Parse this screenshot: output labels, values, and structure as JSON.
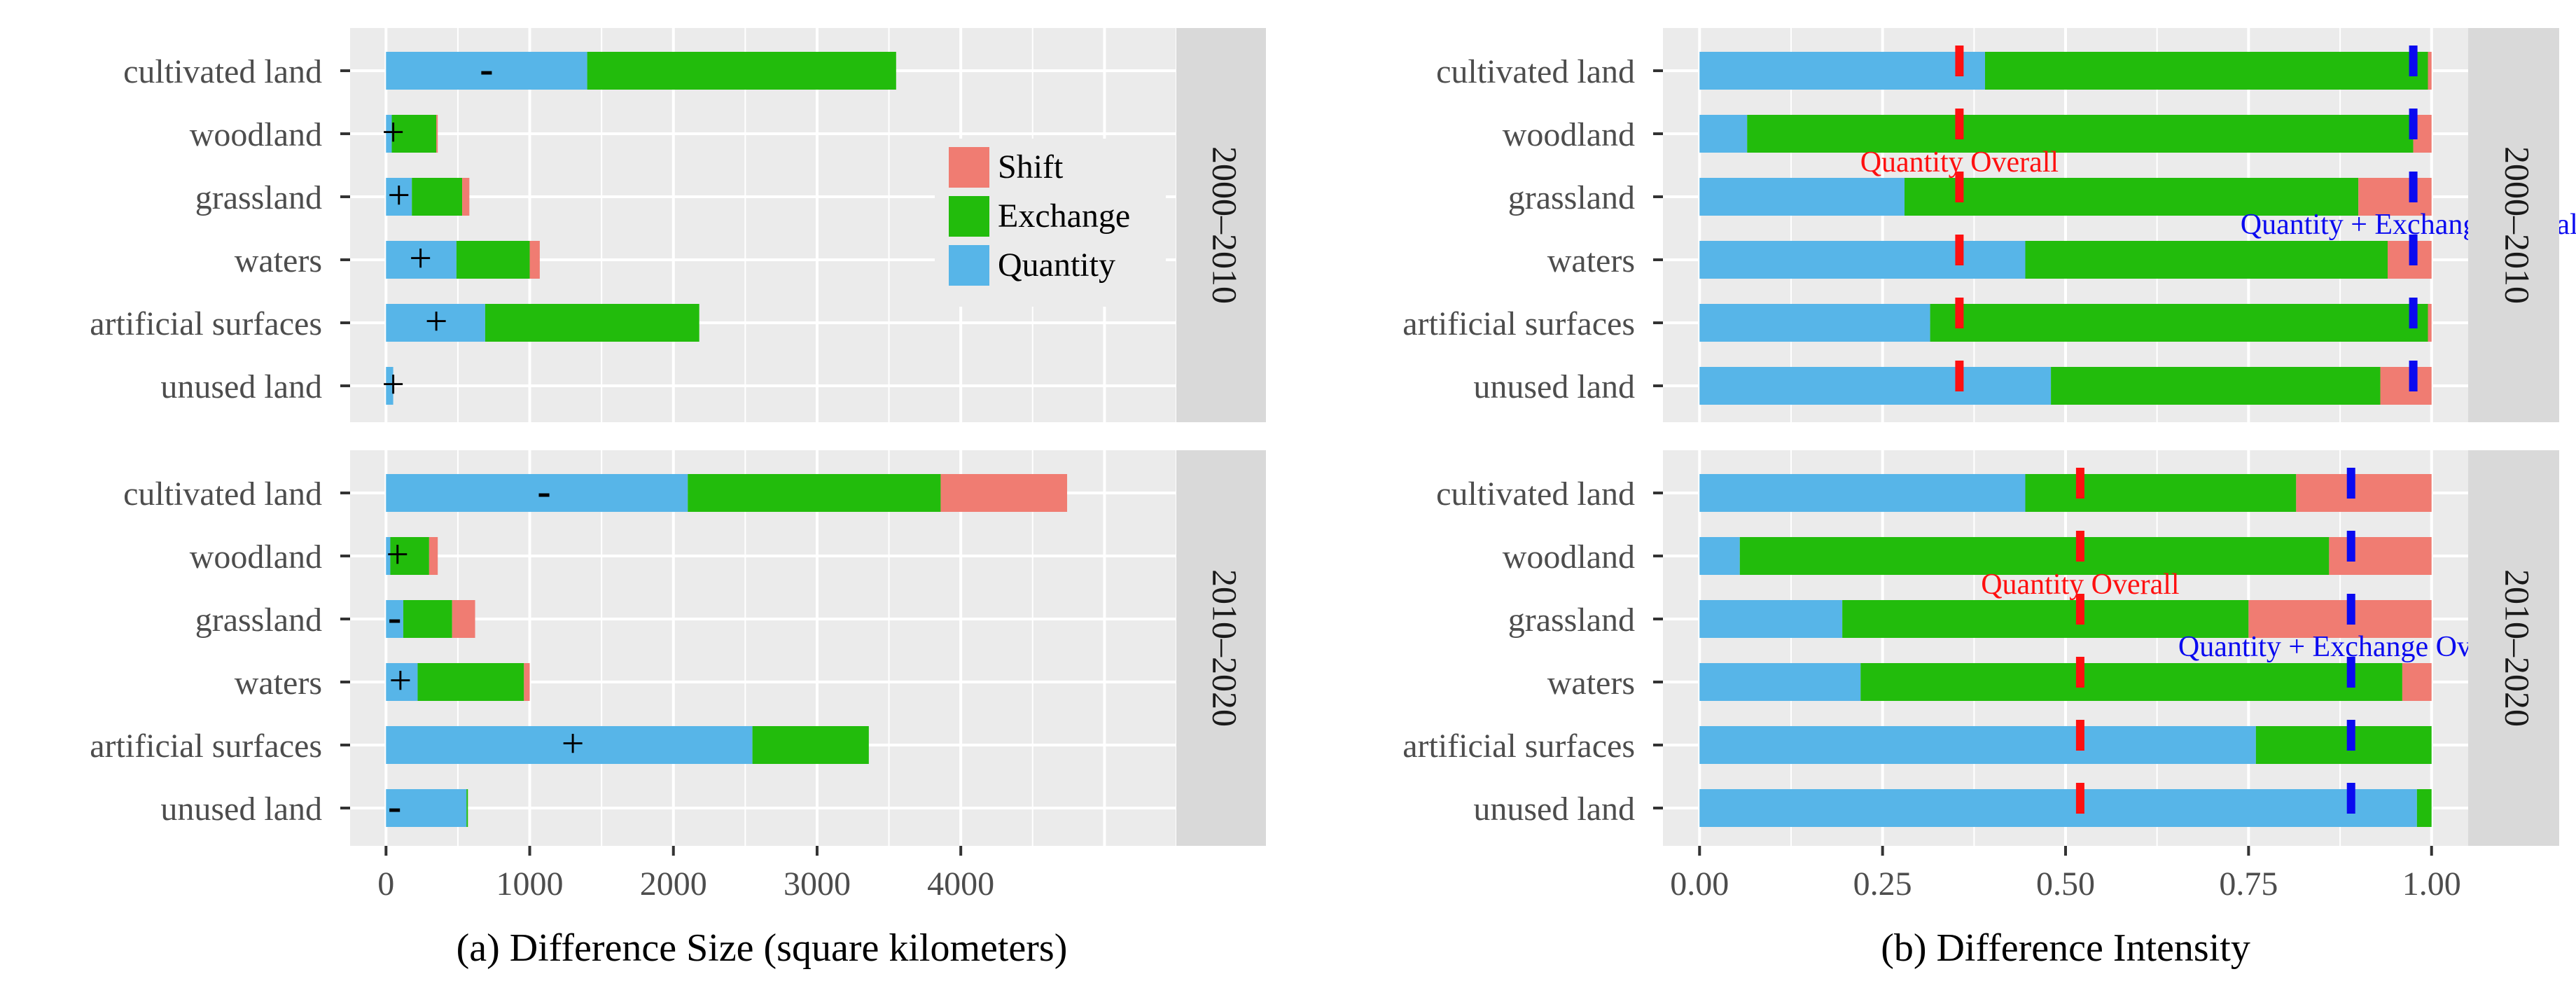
{
  "colors": {
    "shift": "#F07C72",
    "exchange": "#22BC0C",
    "quantity": "#57B5E8",
    "panel_bg": "#EBEBEB",
    "strip_bg": "#D9D9D9",
    "grid": "#FFFFFF",
    "quantity_overall_line": "#FF1010",
    "qe_overall_line": "#0A0AF0",
    "text": "#4D4D4D"
  },
  "categories": [
    "cultivated land",
    "woodland",
    "grassland",
    "waters",
    "artificial surfaces",
    "unused land"
  ],
  "periods": [
    "2000–2010",
    "2010–2020"
  ],
  "legend": {
    "items": [
      {
        "key": "shift",
        "label": "Shift"
      },
      {
        "key": "exchange",
        "label": "Exchange"
      },
      {
        "key": "quantity",
        "label": "Quantity"
      }
    ]
  },
  "chart_data": [
    {
      "type": "bar",
      "orientation": "horizontal",
      "stacked": true,
      "panel": "a",
      "xlabel": "(a) Difference Size (square kilometers)",
      "xlim": [
        -250,
        5500
      ],
      "xticks": [
        0,
        1000,
        2000,
        3000,
        4000
      ],
      "grid": true,
      "legend_position": "top-right",
      "facets": [
        {
          "strip": "2000–2010",
          "series": [
            {
              "name": "Quantity",
              "key": "quantity",
              "values": [
                1400,
                40,
                180,
                490,
                690,
                50
              ]
            },
            {
              "name": "Exchange",
              "key": "exchange",
              "values": [
                2150,
                310,
                350,
                510,
                1490,
                0
              ]
            },
            {
              "name": "Shift",
              "key": "shift",
              "values": [
                0,
                10,
                50,
                70,
                0,
                0
              ]
            }
          ],
          "signs": [
            "-",
            "+",
            "+",
            "+",
            "+",
            "+"
          ],
          "sign_x": [
            700,
            50,
            90,
            240,
            350,
            50
          ]
        },
        {
          "strip": "2010–2020",
          "series": [
            {
              "name": "Quantity",
              "key": "quantity",
              "values": [
                2100,
                30,
                120,
                220,
                2550,
                560
              ]
            },
            {
              "name": "Exchange",
              "key": "exchange",
              "values": [
                1760,
                270,
                340,
                740,
                810,
                10
              ]
            },
            {
              "name": "Shift",
              "key": "shift",
              "values": [
                880,
                60,
                160,
                40,
                0,
                0
              ]
            }
          ],
          "signs": [
            "-",
            "+",
            "-",
            "+",
            "+",
            "-"
          ],
          "sign_x": [
            1100,
            80,
            60,
            100,
            1300,
            60
          ]
        }
      ]
    },
    {
      "type": "bar",
      "orientation": "horizontal",
      "stacked": true,
      "panel": "b",
      "xlabel": "(b) Difference Intensity",
      "xlim": [
        -0.05,
        1.05
      ],
      "xticks": [
        0.0,
        0.25,
        0.5,
        0.75,
        1.0
      ],
      "xtick_labels": [
        "0.00",
        "0.25",
        "0.50",
        "0.75",
        "1.00"
      ],
      "grid": true,
      "facets": [
        {
          "strip": "2000–2010",
          "series": [
            {
              "name": "Quantity",
              "key": "quantity",
              "values": [
                0.39,
                0.065,
                0.28,
                0.445,
                0.315,
                0.48
              ]
            },
            {
              "name": "Exchange",
              "key": "exchange",
              "values": [
                0.605,
                0.91,
                0.62,
                0.495,
                0.68,
                0.45
              ]
            },
            {
              "name": "Shift",
              "key": "shift",
              "values": [
                0.005,
                0.025,
                0.1,
                0.06,
                0.005,
                0.07
              ]
            }
          ],
          "quantity_overall": 0.355,
          "qe_overall": 0.975,
          "quantity_overall_label": "Quantity Overall",
          "qe_overall_label": "Quantity + Exchange Overall"
        },
        {
          "strip": "2010–2020",
          "series": [
            {
              "name": "Quantity",
              "key": "quantity",
              "values": [
                0.445,
                0.055,
                0.195,
                0.22,
                0.76,
                0.98
              ]
            },
            {
              "name": "Exchange",
              "key": "exchange",
              "values": [
                0.37,
                0.805,
                0.555,
                0.74,
                0.24,
                0.02
              ]
            },
            {
              "name": "Shift",
              "key": "shift",
              "values": [
                0.185,
                0.14,
                0.25,
                0.04,
                0.0,
                0.0
              ]
            }
          ],
          "quantity_overall": 0.52,
          "qe_overall": 0.89,
          "quantity_overall_label": "Quantity Overall",
          "qe_overall_label": "Quantity + Exchange Overall"
        }
      ]
    }
  ]
}
